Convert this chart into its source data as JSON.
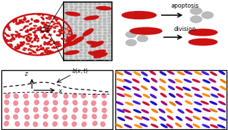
{
  "bg_color": "#ffffff",
  "cell_color_red": "#cc1111",
  "cell_color_pink": "#f08090",
  "cell_color_light": "#f4b0b8",
  "sphere_color": "#bbbbbb",
  "sphere_color2": "#d0d0d0",
  "apoptosis_text": "apoptosis",
  "division_text": "division",
  "quiver_colors": [
    "#ee7700",
    "#cc0044",
    "#6600aa",
    "#2200cc",
    "#dd4400",
    "#ff9900",
    "#8800bb"
  ],
  "inset_bg": "#d8d8d8",
  "circle_pattern_colors": [
    "#cc1111",
    "#ffffff"
  ],
  "panel_border": "#000000"
}
